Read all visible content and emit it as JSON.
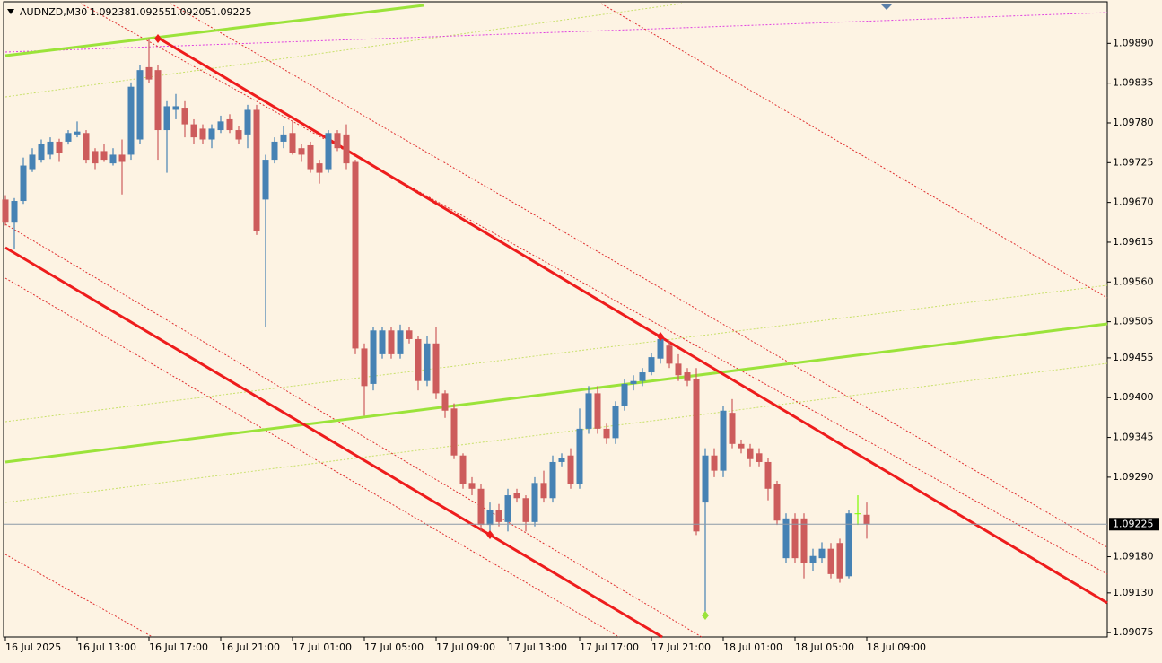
{
  "chart_data": {
    "type": "candlestick",
    "symbol": "AUDNZD,M30",
    "up_color": "#4682b4",
    "down_color": "#cd5c5c",
    "doji_color": "#7cfc00",
    "categories": [
      "16 Jul 2025",
      null,
      null,
      null,
      null,
      null,
      null,
      null,
      "16 Jul 13:00",
      null,
      null,
      null,
      null,
      null,
      null,
      null,
      "16 Jul 17:00",
      null,
      null,
      null,
      null,
      null,
      null,
      null,
      "16 Jul 21:00",
      null,
      null,
      null,
      null,
      null,
      null,
      null,
      "17 Jul 01:00",
      null,
      null,
      null,
      null,
      null,
      null,
      null,
      "17 Jul 05:00",
      null,
      null,
      null,
      null,
      null,
      null,
      null,
      "17 Jul 09:00",
      null,
      null,
      null,
      null,
      null,
      null,
      null,
      "17 Jul 13:00",
      null,
      null,
      null,
      null,
      null,
      null,
      null,
      "17 Jul 17:00",
      null,
      null,
      null,
      null,
      null,
      null,
      null,
      "17 Jul 21:00",
      null,
      null,
      null,
      null,
      null,
      null,
      null,
      "18 Jul 01:00",
      null,
      null,
      null,
      null,
      null,
      null,
      null,
      "18 Jul 05:00",
      null,
      null,
      null,
      null,
      null,
      null,
      null,
      "18 Jul 09:00"
    ],
    "open": [
      1.09674,
      1.09642,
      1.09672,
      1.09716,
      1.09729,
      1.09736,
      1.09754,
      1.09754,
      1.09764,
      1.09766,
      1.09741,
      1.09741,
      1.09724,
      1.09736,
      1.09736,
      1.09757,
      1.09857,
      1.09853,
      1.0977,
      1.09798,
      1.09801,
      1.09778,
      1.09772,
      1.09757,
      1.0977,
      1.09785,
      1.0977,
      1.09764,
      1.09798,
      1.09674,
      1.09729,
      1.09754,
      1.09766,
      1.09745,
      1.09749,
      1.09724,
      1.09716,
      1.09766,
      1.09764,
      1.09726,
      1.09468,
      1.09419,
      1.0946,
      1.09493,
      1.0946,
      1.09493,
      1.09481,
      1.09423,
      1.09475,
      1.09406,
      1.09385,
      1.0932,
      1.09282,
      1.09274,
      1.09224,
      1.09245,
      1.09228,
      1.09268,
      1.09261,
      1.09228,
      1.09282,
      1.09261,
      1.09311,
      1.0932,
      1.0928,
      1.09357,
      1.09406,
      1.09357,
      1.09344,
      1.09389,
      1.09419,
      1.09423,
      1.09435,
      1.09454,
      1.09472,
      1.09447,
      1.09435,
      1.09426,
      1.09255,
      1.0932,
      1.09299,
      1.09379,
      1.09336,
      1.0933,
      1.09323,
      1.09311,
      1.0928,
      1.09178,
      1.09233,
      1.09233,
      1.09171,
      1.09178,
      1.09191,
      1.09199,
      1.09153,
      1.0924,
      1.09238
    ],
    "high": [
      1.0968,
      1.09676,
      1.09732,
      1.09745,
      1.09757,
      1.0976,
      1.09758,
      1.0977,
      1.09782,
      1.0977,
      1.09745,
      1.09751,
      1.09745,
      1.09757,
      1.09836,
      1.0986,
      1.09897,
      1.0986,
      1.0981,
      1.0982,
      1.0981,
      1.09785,
      1.09778,
      1.09778,
      1.0979,
      1.09792,
      1.09775,
      1.09805,
      1.09805,
      1.09736,
      1.0976,
      1.09775,
      1.09782,
      1.09751,
      1.09754,
      1.09729,
      1.0977,
      1.0977,
      1.09778,
      1.09729,
      1.09475,
      1.09498,
      1.09498,
      1.09498,
      1.09501,
      1.09498,
      1.09485,
      1.09485,
      1.09498,
      1.0941,
      1.09392,
      1.09323,
      1.0929,
      1.0928,
      1.09255,
      1.09253,
      1.09274,
      1.09274,
      1.09265,
      1.0929,
      1.09299,
      1.0932,
      1.09323,
      1.0933,
      1.09385,
      1.09416,
      1.09416,
      1.09364,
      1.09395,
      1.09426,
      1.09431,
      1.09441,
      1.09462,
      1.09488,
      1.09478,
      1.0946,
      1.09441,
      1.09441,
      1.0933,
      1.0933,
      1.09389,
      1.09398,
      1.09342,
      1.09336,
      1.0933,
      1.09317,
      1.09285,
      1.0924,
      1.0924,
      1.0924,
      1.09191,
      1.092,
      1.09199,
      1.09205,
      1.09245,
      1.09265,
      1.09255
    ],
    "low": [
      1.09638,
      1.09605,
      1.09668,
      1.09712,
      1.09725,
      1.0973,
      1.09726,
      1.0975,
      1.0976,
      1.09724,
      1.09716,
      1.09726,
      1.09721,
      1.09681,
      1.09729,
      1.09751,
      1.09835,
      1.09729,
      1.09711,
      1.09785,
      1.0976,
      1.09751,
      1.09751,
      1.09745,
      1.09766,
      1.09766,
      1.09751,
      1.09745,
      1.09625,
      1.09497,
      1.09724,
      1.09745,
      1.09736,
      1.09726,
      1.09711,
      1.09696,
      1.09711,
      1.09741,
      1.09716,
      1.0946,
      1.09375,
      1.0941,
      1.09454,
      1.09454,
      1.09454,
      1.09475,
      1.0941,
      1.09416,
      1.09398,
      1.09372,
      1.09315,
      1.09274,
      1.09265,
      1.09215,
      1.09215,
      1.09222,
      1.09215,
      1.09255,
      1.09215,
      1.09222,
      1.09255,
      1.09255,
      1.09305,
      1.09274,
      1.09274,
      1.0935,
      1.0935,
      1.09336,
      1.09336,
      1.09382,
      1.0941,
      1.09416,
      1.09431,
      1.09447,
      1.09441,
      1.09423,
      1.09416,
      1.0921,
      1.091,
      1.0929,
      1.0929,
      1.0933,
      1.09323,
      1.09305,
      1.09305,
      1.09258,
      1.09224,
      1.09171,
      1.09171,
      1.0915,
      1.0916,
      1.09171,
      1.0915,
      1.09144,
      1.0915,
      1.09224,
      1.09205
    ],
    "close": [
      1.09642,
      1.09672,
      1.09721,
      1.09736,
      1.09751,
      1.09754,
      1.09739,
      1.09766,
      1.09768,
      1.09729,
      1.09724,
      1.09729,
      1.09736,
      1.09726,
      1.0983,
      1.09853,
      1.0984,
      1.0977,
      1.09803,
      1.09803,
      1.09778,
      1.0976,
      1.09757,
      1.09772,
      1.09782,
      1.0977,
      1.09757,
      1.09798,
      1.0963,
      1.09729,
      1.09754,
      1.09764,
      1.09739,
      1.09736,
      1.09716,
      1.09711,
      1.09766,
      1.09745,
      1.09724,
      1.09468,
      1.09416,
      1.09493,
      1.09493,
      1.0946,
      1.09493,
      1.09481,
      1.09423,
      1.09475,
      1.09406,
      1.09382,
      1.0932,
      1.0928,
      1.09274,
      1.09224,
      1.09245,
      1.09228,
      1.09265,
      1.09261,
      1.09228,
      1.09282,
      1.09261,
      1.09311,
      1.09317,
      1.0928,
      1.09357,
      1.09406,
      1.09357,
      1.09344,
      1.09389,
      1.09419,
      1.09423,
      1.09435,
      1.09456,
      1.09481,
      1.09447,
      1.09431,
      1.09423,
      1.09215,
      1.0932,
      1.09299,
      1.09382,
      1.09336,
      1.0933,
      1.09315,
      1.09311,
      1.09274,
      1.0923,
      1.09233,
      1.09178,
      1.09171,
      1.09181,
      1.09191,
      1.09156,
      1.0915,
      1.0924,
      1.0924,
      1.09225
    ],
    "ylim": [
      1.09069,
      1.09945
    ],
    "yticks": [
      {
        "value": 1.0989,
        "label": "1.09890"
      },
      {
        "value": 1.09835,
        "label": "1.09835"
      },
      {
        "value": 1.0978,
        "label": "1.09780"
      },
      {
        "value": 1.09725,
        "label": "1.09725"
      },
      {
        "value": 1.0967,
        "label": "1.09670"
      },
      {
        "value": 1.09615,
        "label": "1.09615"
      },
      {
        "value": 1.0956,
        "label": "1.09560"
      },
      {
        "value": 1.09505,
        "label": "1.09505"
      },
      {
        "value": 1.09455,
        "label": "1.09455"
      },
      {
        "value": 1.094,
        "label": "1.09400"
      },
      {
        "value": 1.09345,
        "label": "1.09345"
      },
      {
        "value": 1.0929,
        "label": "1.09290"
      },
      {
        "value": 1.0918,
        "label": "1.09180"
      },
      {
        "value": 1.0913,
        "label": "1.09130"
      },
      {
        "value": 1.09075,
        "label": "1.09075"
      }
    ]
  }
}
